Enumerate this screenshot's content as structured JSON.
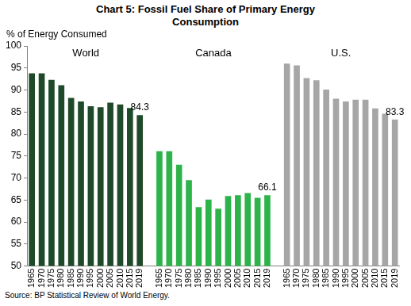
{
  "chart_data": {
    "type": "bar",
    "title": "Chart 5: Fossil Fuel Share of Primary Energy Consumption",
    "y_label": "% of Energy Consumed",
    "source": "Source: BP Statistical Review of World Energy.",
    "categories": [
      "1965",
      "1970",
      "1975",
      "1980",
      "1985",
      "1990",
      "1995",
      "2000",
      "2005",
      "2010",
      "2015",
      "2019",
      null,
      "1965",
      "1970",
      "1975",
      "1980",
      "1985",
      "1990",
      "1995",
      "2000",
      "2005",
      "2010",
      "2015",
      "2019",
      null,
      "1965",
      "1970",
      "1975",
      "1980",
      "1985",
      "1990",
      "1995",
      "2000",
      "2005",
      "2010",
      "2015",
      "2019"
    ],
    "series": [
      {
        "name": "World",
        "color": "#1f4a2a",
        "values": [
          93.8,
          93.8,
          92.3,
          91.1,
          88.2,
          87.4,
          86.3,
          86.1,
          87.1,
          86.7,
          85.9,
          84.3,
          null,
          null,
          null,
          null,
          null,
          null,
          null,
          null,
          null,
          null,
          null,
          null,
          null,
          null,
          null,
          null,
          null,
          null,
          null,
          null,
          null,
          null,
          null,
          null,
          null,
          null
        ],
        "value_labels": [
          null,
          null,
          null,
          null,
          null,
          null,
          null,
          null,
          null,
          null,
          null,
          "84.3",
          null,
          null,
          null,
          null,
          null,
          null,
          null,
          null,
          null,
          null,
          null,
          null,
          null,
          null,
          null,
          null,
          null,
          null,
          null,
          null,
          null,
          null,
          null,
          null,
          null,
          null
        ]
      },
      {
        "name": "Canada",
        "color": "#2eb34b",
        "values": [
          null,
          null,
          null,
          null,
          null,
          null,
          null,
          null,
          null,
          null,
          null,
          null,
          null,
          76.1,
          76.1,
          73.0,
          69.5,
          63.4,
          65.1,
          63.0,
          65.9,
          66.1,
          66.6,
          65.5,
          66.1,
          null,
          null,
          null,
          null,
          null,
          null,
          null,
          null,
          null,
          null,
          null,
          null,
          null
        ],
        "value_labels": [
          null,
          null,
          null,
          null,
          null,
          null,
          null,
          null,
          null,
          null,
          null,
          null,
          null,
          null,
          null,
          null,
          null,
          null,
          null,
          null,
          null,
          null,
          null,
          null,
          "66.1",
          null,
          null,
          null,
          null,
          null,
          null,
          null,
          null,
          null,
          null,
          null,
          null,
          null
        ]
      },
      {
        "name": "U.S.",
        "color": "#a6a6a6",
        "values": [
          null,
          null,
          null,
          null,
          null,
          null,
          null,
          null,
          null,
          null,
          null,
          null,
          null,
          null,
          null,
          null,
          null,
          null,
          null,
          null,
          null,
          null,
          null,
          null,
          null,
          null,
          96.0,
          95.6,
          92.7,
          92.2,
          90.1,
          88.0,
          87.4,
          87.8,
          87.8,
          85.8,
          84.6,
          83.3
        ],
        "value_labels": [
          null,
          null,
          null,
          null,
          null,
          null,
          null,
          null,
          null,
          null,
          null,
          null,
          null,
          null,
          null,
          null,
          null,
          null,
          null,
          null,
          null,
          null,
          null,
          null,
          null,
          null,
          null,
          null,
          null,
          null,
          null,
          null,
          null,
          null,
          null,
          null,
          null,
          "83.3"
        ]
      }
    ],
    "ylim": [
      50,
      100
    ],
    "yticks": [
      50,
      55,
      60,
      65,
      70,
      75,
      80,
      85,
      90,
      95,
      100
    ],
    "grid": false,
    "data_labels": true
  }
}
